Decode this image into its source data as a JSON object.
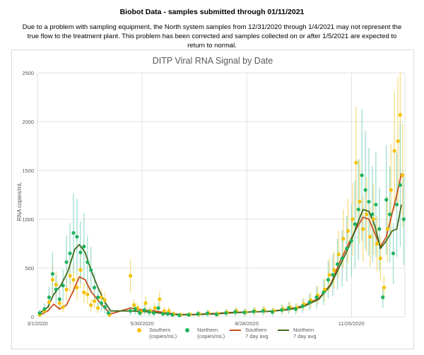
{
  "page": {
    "title": "Biobot Data - samples submitted through 01/11/2021",
    "notice": "Due to a problem with sampling equipment, the North system samples from 12/31/2020 through 1/4/2021 may not represent the true flow to the treatment plant. This problem has been corrected and samples collected on or after 1/5/2021 are expected to return to normal."
  },
  "colors": {
    "southern": "#f5c200",
    "northern": "#1fb35f",
    "southern_avg": "#c8501e",
    "northern_avg": "#3f6b1c",
    "northern_band": "#7fd1c0",
    "southern_band": "#f2d25a",
    "grid": "#d9d9d9",
    "axis_text": "#595959"
  },
  "chart_data": {
    "type": "scatter",
    "title": "DITP Viral RNA Signal by Date",
    "ylabel": "RNA copies/mL",
    "xlabel": "",
    "ylim": [
      0,
      2500
    ],
    "xlim": [
      "2020-03-01",
      "2021-01-11"
    ],
    "y_ticks": [
      0,
      500,
      1000,
      1500,
      2000,
      2500
    ],
    "x_ticks": [
      {
        "date": "2020-03-01",
        "label": "3/1/2020"
      },
      {
        "date": "2020-05-30",
        "label": "5/30/2020"
      },
      {
        "date": "2020-08-28",
        "label": "8/28/2020"
      },
      {
        "date": "2020-11-26",
        "label": "11/26/2020"
      }
    ],
    "grid": "vertical and horizontal",
    "legend_position": "bottom",
    "legend": [
      {
        "key": "southern",
        "kind": "marker",
        "label_line1": "Southern",
        "label_line2": "(copies/mL)"
      },
      {
        "key": "northern",
        "kind": "marker",
        "label_line1": "Northern",
        "label_line2": "(copies/mL)"
      },
      {
        "key": "southern_avg",
        "kind": "line",
        "label_line1": "Southern",
        "label_line2": "7 day avg"
      },
      {
        "key": "northern_avg",
        "kind": "line",
        "label_line1": "Northern",
        "label_line2": "7 day avg"
      }
    ],
    "series": [
      {
        "name": "Southern (copies/mL)",
        "kind": "marker",
        "color_key": "southern",
        "points": [
          [
            "2020-03-03",
            20
          ],
          [
            "2020-03-07",
            60
          ],
          [
            "2020-03-11",
            150
          ],
          [
            "2020-03-14",
            380
          ],
          [
            "2020-03-17",
            330
          ],
          [
            "2020-03-20",
            140
          ],
          [
            "2020-03-23",
            100
          ],
          [
            "2020-03-26",
            280
          ],
          [
            "2020-03-29",
            420
          ],
          [
            "2020-04-01",
            380
          ],
          [
            "2020-04-04",
            300
          ],
          [
            "2020-04-07",
            480
          ],
          [
            "2020-04-10",
            250
          ],
          [
            "2020-04-13",
            230
          ],
          [
            "2020-04-16",
            120
          ],
          [
            "2020-04-19",
            160
          ],
          [
            "2020-04-22",
            90
          ],
          [
            "2020-04-25",
            200
          ],
          [
            "2020-04-28",
            170
          ],
          [
            "2020-05-02",
            20
          ],
          [
            "2020-05-20",
            420
          ],
          [
            "2020-05-23",
            120
          ],
          [
            "2020-05-26",
            90
          ],
          [
            "2020-05-29",
            50
          ],
          [
            "2020-06-02",
            140
          ],
          [
            "2020-06-06",
            60
          ],
          [
            "2020-06-10",
            90
          ],
          [
            "2020-06-14",
            180
          ],
          [
            "2020-06-18",
            60
          ],
          [
            "2020-06-22",
            60
          ],
          [
            "2020-06-26",
            30
          ],
          [
            "2020-07-02",
            20
          ],
          [
            "2020-07-10",
            25
          ],
          [
            "2020-07-18",
            30
          ],
          [
            "2020-07-26",
            40
          ],
          [
            "2020-08-03",
            30
          ],
          [
            "2020-08-11",
            45
          ],
          [
            "2020-08-19",
            60
          ],
          [
            "2020-08-27",
            50
          ],
          [
            "2020-09-04",
            60
          ],
          [
            "2020-09-12",
            70
          ],
          [
            "2020-09-20",
            60
          ],
          [
            "2020-09-28",
            80
          ],
          [
            "2020-10-04",
            100
          ],
          [
            "2020-10-10",
            90
          ],
          [
            "2020-10-16",
            130
          ],
          [
            "2020-10-22",
            170
          ],
          [
            "2020-10-28",
            220
          ],
          [
            "2020-11-03",
            280
          ],
          [
            "2020-11-07",
            430
          ],
          [
            "2020-11-11",
            480
          ],
          [
            "2020-11-15",
            640
          ],
          [
            "2020-11-19",
            800
          ],
          [
            "2020-11-23",
            880
          ],
          [
            "2020-11-27",
            1000
          ],
          [
            "2020-11-30",
            1580
          ],
          [
            "2020-12-03",
            1180
          ],
          [
            "2020-12-06",
            900
          ],
          [
            "2020-12-09",
            1050
          ],
          [
            "2020-12-12",
            820
          ],
          [
            "2020-12-15",
            1000
          ],
          [
            "2020-12-18",
            750
          ],
          [
            "2020-12-21",
            600
          ],
          [
            "2020-12-24",
            300
          ],
          [
            "2020-12-27",
            900
          ],
          [
            "2020-12-30",
            1300
          ],
          [
            "2021-01-02",
            1700
          ],
          [
            "2021-01-05",
            1800
          ],
          [
            "2021-01-07",
            2070
          ],
          [
            "2021-01-09",
            1450
          ]
        ]
      },
      {
        "name": "Northern (copies/mL)",
        "kind": "marker",
        "color_key": "northern",
        "points": [
          [
            "2020-03-03",
            40
          ],
          [
            "2020-03-07",
            80
          ],
          [
            "2020-03-11",
            200
          ],
          [
            "2020-03-14",
            440
          ],
          [
            "2020-03-17",
            280
          ],
          [
            "2020-03-20",
            180
          ],
          [
            "2020-03-23",
            320
          ],
          [
            "2020-03-26",
            560
          ],
          [
            "2020-03-29",
            650
          ],
          [
            "2020-04-01",
            860
          ],
          [
            "2020-04-04",
            820
          ],
          [
            "2020-04-07",
            660
          ],
          [
            "2020-04-10",
            720
          ],
          [
            "2020-04-13",
            560
          ],
          [
            "2020-04-16",
            480
          ],
          [
            "2020-04-19",
            300
          ],
          [
            "2020-04-22",
            200
          ],
          [
            "2020-04-25",
            140
          ],
          [
            "2020-04-28",
            100
          ],
          [
            "2020-05-01",
            40
          ],
          [
            "2020-05-20",
            60
          ],
          [
            "2020-05-24",
            80
          ],
          [
            "2020-05-28",
            40
          ],
          [
            "2020-06-01",
            70
          ],
          [
            "2020-06-05",
            50
          ],
          [
            "2020-06-09",
            40
          ],
          [
            "2020-06-13",
            90
          ],
          [
            "2020-06-17",
            30
          ],
          [
            "2020-06-21",
            30
          ],
          [
            "2020-06-25",
            20
          ],
          [
            "2020-07-01",
            15
          ],
          [
            "2020-07-09",
            20
          ],
          [
            "2020-07-17",
            30
          ],
          [
            "2020-07-25",
            35
          ],
          [
            "2020-08-02",
            25
          ],
          [
            "2020-08-10",
            40
          ],
          [
            "2020-08-18",
            50
          ],
          [
            "2020-08-26",
            45
          ],
          [
            "2020-09-03",
            55
          ],
          [
            "2020-09-11",
            60
          ],
          [
            "2020-09-19",
            50
          ],
          [
            "2020-09-27",
            70
          ],
          [
            "2020-10-03",
            90
          ],
          [
            "2020-10-09",
            80
          ],
          [
            "2020-10-15",
            110
          ],
          [
            "2020-10-21",
            150
          ],
          [
            "2020-10-27",
            200
          ],
          [
            "2020-11-02",
            250
          ],
          [
            "2020-11-06",
            380
          ],
          [
            "2020-11-10",
            430
          ],
          [
            "2020-11-14",
            540
          ],
          [
            "2020-11-18",
            600
          ],
          [
            "2020-11-22",
            700
          ],
          [
            "2020-11-26",
            780
          ],
          [
            "2020-11-29",
            950
          ],
          [
            "2020-12-02",
            1100
          ],
          [
            "2020-12-05",
            1450
          ],
          [
            "2020-12-08",
            1300
          ],
          [
            "2020-12-11",
            1180
          ],
          [
            "2020-12-14",
            1050
          ],
          [
            "2020-12-17",
            1150
          ],
          [
            "2020-12-20",
            900
          ],
          [
            "2020-12-23",
            200
          ],
          [
            "2020-12-26",
            1200
          ],
          [
            "2020-12-29",
            1050
          ],
          [
            "2021-01-01",
            650
          ],
          [
            "2021-01-04",
            1150
          ],
          [
            "2021-01-07",
            1350
          ],
          [
            "2021-01-10",
            1000
          ]
        ]
      },
      {
        "name": "Southern 7 day avg",
        "kind": "line",
        "color_key": "southern_avg",
        "points": [
          [
            "2020-03-03",
            20
          ],
          [
            "2020-03-10",
            60
          ],
          [
            "2020-03-15",
            130
          ],
          [
            "2020-03-20",
            80
          ],
          [
            "2020-03-26",
            120
          ],
          [
            "2020-04-01",
            270
          ],
          [
            "2020-04-06",
            410
          ],
          [
            "2020-04-11",
            380
          ],
          [
            "2020-04-16",
            260
          ],
          [
            "2020-04-22",
            170
          ],
          [
            "2020-04-28",
            90
          ],
          [
            "2020-05-03",
            30
          ],
          [
            "2020-05-20",
            90
          ],
          [
            "2020-05-30",
            70
          ],
          [
            "2020-06-10",
            60
          ],
          [
            "2020-06-20",
            40
          ],
          [
            "2020-07-01",
            25
          ],
          [
            "2020-07-15",
            25
          ],
          [
            "2020-08-01",
            35
          ],
          [
            "2020-08-15",
            45
          ],
          [
            "2020-09-01",
            50
          ],
          [
            "2020-09-15",
            55
          ],
          [
            "2020-10-01",
            75
          ],
          [
            "2020-10-15",
            110
          ],
          [
            "2020-10-29",
            190
          ],
          [
            "2020-11-08",
            330
          ],
          [
            "2020-11-16",
            560
          ],
          [
            "2020-11-24",
            760
          ],
          [
            "2020-12-01",
            920
          ],
          [
            "2020-12-06",
            1020
          ],
          [
            "2020-12-11",
            1000
          ],
          [
            "2020-12-16",
            860
          ],
          [
            "2020-12-21",
            720
          ],
          [
            "2020-12-26",
            820
          ],
          [
            "2020-12-31",
            1060
          ],
          [
            "2021-01-04",
            1250
          ],
          [
            "2021-01-08",
            1470
          ]
        ]
      },
      {
        "name": "Northern 7 day avg",
        "kind": "line",
        "color_key": "northern_avg",
        "points": [
          [
            "2020-03-03",
            40
          ],
          [
            "2020-03-10",
            100
          ],
          [
            "2020-03-15",
            230
          ],
          [
            "2020-03-21",
            320
          ],
          [
            "2020-03-27",
            460
          ],
          [
            "2020-04-02",
            690
          ],
          [
            "2020-04-06",
            740
          ],
          [
            "2020-04-11",
            660
          ],
          [
            "2020-04-16",
            480
          ],
          [
            "2020-04-22",
            300
          ],
          [
            "2020-04-28",
            150
          ],
          [
            "2020-05-03",
            60
          ],
          [
            "2020-05-20",
            60
          ],
          [
            "2020-05-30",
            55
          ],
          [
            "2020-06-10",
            45
          ],
          [
            "2020-06-20",
            30
          ],
          [
            "2020-07-01",
            20
          ],
          [
            "2020-07-15",
            22
          ],
          [
            "2020-08-01",
            30
          ],
          [
            "2020-08-15",
            40
          ],
          [
            "2020-09-01",
            50
          ],
          [
            "2020-09-15",
            55
          ],
          [
            "2020-10-01",
            70
          ],
          [
            "2020-10-15",
            100
          ],
          [
            "2020-10-29",
            180
          ],
          [
            "2020-11-08",
            320
          ],
          [
            "2020-11-16",
            520
          ],
          [
            "2020-11-24",
            720
          ],
          [
            "2020-12-01",
            950
          ],
          [
            "2020-12-06",
            1100
          ],
          [
            "2020-12-11",
            1080
          ],
          [
            "2020-12-16",
            940
          ],
          [
            "2020-12-21",
            700
          ],
          [
            "2020-12-26",
            780
          ],
          [
            "2020-12-31",
            880
          ],
          [
            "2021-01-04",
            900
          ],
          [
            "2021-01-08",
            1150
          ]
        ]
      }
    ]
  }
}
